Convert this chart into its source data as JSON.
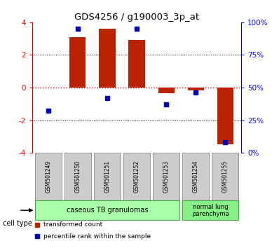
{
  "title": "GDS4256 / g190003_3p_at",
  "samples": [
    "GSM501249",
    "GSM501250",
    "GSM501251",
    "GSM501252",
    "GSM501253",
    "GSM501254",
    "GSM501255"
  ],
  "transformed_count": [
    0.02,
    3.1,
    3.6,
    2.9,
    -0.35,
    -0.18,
    -3.5
  ],
  "percentile_rank": [
    32,
    95,
    42,
    95,
    37,
    46,
    8
  ],
  "ylim_left": [
    -4,
    4
  ],
  "ylim_right": [
    0,
    100
  ],
  "left_ticks": [
    -4,
    -2,
    0,
    2,
    4
  ],
  "right_ticks": [
    0,
    25,
    50,
    75,
    100
  ],
  "right_tick_labels": [
    "0%",
    "25%",
    "50%",
    "75%",
    "100%"
  ],
  "bar_color": "#bb2200",
  "dot_color": "#0000bb",
  "zero_line_color": "#cc0000",
  "grid_line_color": "#000000",
  "bar_width": 0.55,
  "left_spine_color": "#cc0000",
  "right_spine_color": "#0000cc",
  "group1_label": "caseous TB granulomas",
  "group1_indices": [
    0,
    1,
    2,
    3,
    4
  ],
  "group1_color": "#aaffaa",
  "group2_label": "normal lung\nparenchyma",
  "group2_indices": [
    5,
    6
  ],
  "group2_color": "#88ee88",
  "cell_border_color": "#44aa44",
  "sample_box_color": "#cccccc",
  "sample_box_edge": "#888888",
  "legend_red_label": "transformed count",
  "legend_blue_label": "percentile rank within the sample",
  "cell_type_label": "cell type"
}
